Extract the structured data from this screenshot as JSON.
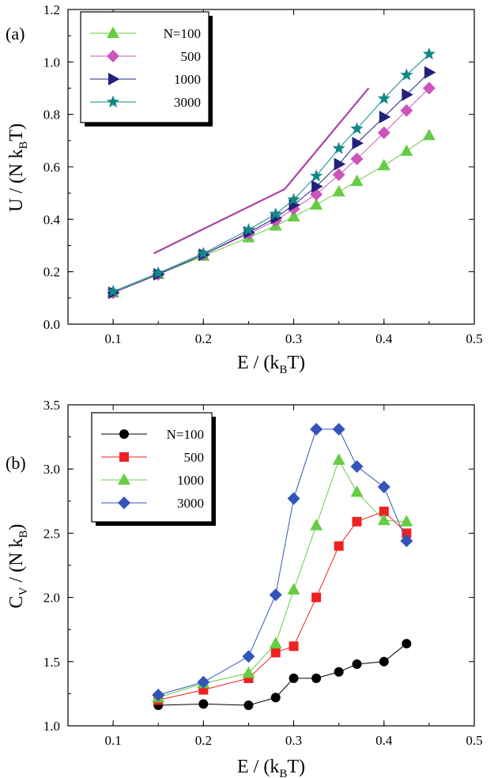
{
  "chart_data": [
    {
      "type": "line",
      "panel_label": "(a)",
      "xlabel": {
        "main": "E / (k",
        "sub": "B",
        "tail": "T)"
      },
      "ylabel": {
        "main": "U / (N k",
        "sub": "B",
        "tail": "T)"
      },
      "xlim": [
        0.05,
        0.5
      ],
      "ylim": [
        0.0,
        1.2
      ],
      "xticks": [
        "0.1",
        "0.2",
        "0.3",
        "0.4",
        "0.5"
      ],
      "xtick_values": [
        0.1,
        0.2,
        0.3,
        0.4,
        0.5
      ],
      "yticks": [
        "0.0",
        "0.2",
        "0.4",
        "0.6",
        "0.8",
        "1.0",
        "1.2"
      ],
      "ytick_values": [
        0.0,
        0.2,
        0.4,
        0.6,
        0.8,
        1.0,
        1.2
      ],
      "grid": false,
      "legend_position": "top-left",
      "series": [
        {
          "name": "N=100",
          "marker": "triangle-up",
          "color": "#66cc44",
          "x": [
            0.1,
            0.15,
            0.2,
            0.25,
            0.28,
            0.3,
            0.325,
            0.35,
            0.37,
            0.4,
            0.425,
            0.45
          ],
          "y": [
            0.12,
            0.19,
            0.26,
            0.33,
            0.375,
            0.41,
            0.455,
            0.505,
            0.545,
            0.605,
            0.66,
            0.72
          ]
        },
        {
          "name": "500",
          "marker": "diamond",
          "color": "#cc55bb",
          "x": [
            0.1,
            0.15,
            0.2,
            0.25,
            0.28,
            0.3,
            0.325,
            0.35,
            0.37,
            0.4,
            0.425,
            0.45
          ],
          "y": [
            0.12,
            0.19,
            0.265,
            0.345,
            0.395,
            0.44,
            0.495,
            0.57,
            0.63,
            0.73,
            0.815,
            0.9
          ]
        },
        {
          "name": "1000",
          "marker": "triangle-right",
          "color": "#22227a",
          "x": [
            0.1,
            0.15,
            0.2,
            0.25,
            0.28,
            0.3,
            0.325,
            0.35,
            0.37,
            0.4,
            0.425,
            0.45
          ],
          "y": [
            0.12,
            0.19,
            0.265,
            0.35,
            0.405,
            0.455,
            0.525,
            0.61,
            0.69,
            0.79,
            0.875,
            0.96
          ]
        },
        {
          "name": "3000",
          "marker": "star",
          "color": "#118888",
          "x": [
            0.1,
            0.15,
            0.2,
            0.25,
            0.28,
            0.3,
            0.325,
            0.35,
            0.37,
            0.4,
            0.425,
            0.45
          ],
          "y": [
            0.125,
            0.195,
            0.27,
            0.36,
            0.42,
            0.475,
            0.565,
            0.67,
            0.745,
            0.86,
            0.95,
            1.03
          ]
        }
      ],
      "reference_line": {
        "color": "#aa44aa",
        "x": [
          0.145,
          0.29,
          0.383
        ],
        "y": [
          0.27,
          0.515,
          0.9
        ]
      }
    },
    {
      "type": "line",
      "panel_label": "(b)",
      "xlabel": {
        "main": "E / (k",
        "sub": "B",
        "tail": "T)"
      },
      "ylabel": {
        "pre": "C",
        "presub": "V",
        "main": " / (N k",
        "sub": "B",
        "tail": ")"
      },
      "xlim": [
        0.05,
        0.5
      ],
      "ylim": [
        1.0,
        3.5
      ],
      "xticks": [
        "0.1",
        "0.2",
        "0.3",
        "0.4",
        "0.5"
      ],
      "xtick_values": [
        0.1,
        0.2,
        0.3,
        0.4,
        0.5
      ],
      "yticks": [
        "1.0",
        "1.5",
        "2.0",
        "2.5",
        "3.0",
        "3.5"
      ],
      "ytick_values": [
        1.0,
        1.5,
        2.0,
        2.5,
        3.0,
        3.5
      ],
      "grid": false,
      "legend_position": "top-left",
      "series": [
        {
          "name": "N=100",
          "marker": "circle",
          "color": "#000000",
          "x": [
            0.15,
            0.2,
            0.25,
            0.28,
            0.3,
            0.325,
            0.35,
            0.37,
            0.4,
            0.425
          ],
          "y": [
            1.16,
            1.17,
            1.16,
            1.22,
            1.37,
            1.37,
            1.42,
            1.48,
            1.5,
            1.64
          ]
        },
        {
          "name": "500",
          "marker": "square",
          "color": "#ee2222",
          "x": [
            0.15,
            0.2,
            0.25,
            0.28,
            0.3,
            0.325,
            0.35,
            0.37,
            0.4,
            0.425
          ],
          "y": [
            1.2,
            1.28,
            1.37,
            1.57,
            1.62,
            2.0,
            2.4,
            2.59,
            2.67,
            2.5
          ]
        },
        {
          "name": "1000",
          "marker": "triangle-up",
          "color": "#66cc44",
          "x": [
            0.15,
            0.2,
            0.25,
            0.28,
            0.3,
            0.325,
            0.35,
            0.37,
            0.4,
            0.425
          ],
          "y": [
            1.22,
            1.33,
            1.41,
            1.64,
            2.06,
            2.56,
            3.07,
            2.82,
            2.6,
            2.59
          ]
        },
        {
          "name": "3000",
          "marker": "diamond",
          "color": "#3355bb",
          "x": [
            0.15,
            0.2,
            0.25,
            0.28,
            0.3,
            0.325,
            0.35,
            0.37,
            0.4,
            0.425
          ],
          "y": [
            1.24,
            1.34,
            1.54,
            2.02,
            2.77,
            3.31,
            3.31,
            3.02,
            2.86,
            2.44
          ]
        }
      ]
    }
  ]
}
